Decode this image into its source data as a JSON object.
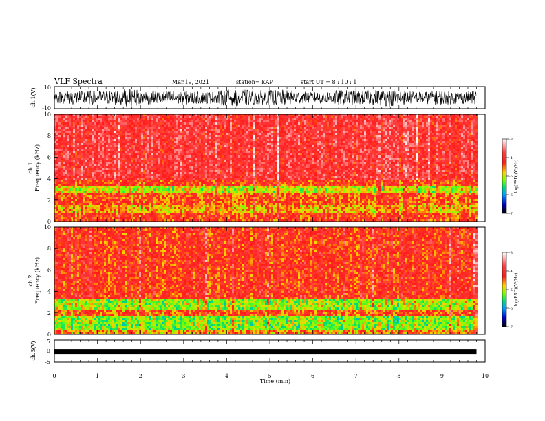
{
  "header": {
    "title": "VLF Spectra",
    "date": "Mar.19, 2021",
    "station": "station= KAP",
    "start": "start  UT =  8 : 10 : 1"
  },
  "chart_data": [
    {
      "type": "line",
      "panel": "waveform-ch1",
      "ylabel": "ch.1(V)",
      "ylim": [
        -10,
        10
      ],
      "yticks": [
        10,
        -10
      ],
      "description_values": {
        "x_range_min": [
          0,
          9.8
        ],
        "typical_amplitude_V": [
          -8,
          8
        ]
      }
    },
    {
      "type": "heatmap",
      "panel": "spectrogram-ch1",
      "ylabel": "ch.1",
      "ylabel2": "Frequency  (kHz)",
      "ylim": [
        0,
        10
      ],
      "yticks": [
        "0",
        "2",
        "4",
        "6",
        "8",
        "10"
      ],
      "xlim": [
        0,
        9.8
      ],
      "bands": [
        {
          "f_low": 3.8,
          "f_high": 10.0,
          "log_psd": -3.9
        },
        {
          "f_low": 3.3,
          "f_high": 3.8,
          "log_psd": -4.3
        },
        {
          "f_low": 2.6,
          "f_high": 3.3,
          "log_psd": -5.0
        },
        {
          "f_low": 1.6,
          "f_high": 2.6,
          "log_psd": -4.4
        },
        {
          "f_low": 0.7,
          "f_high": 1.6,
          "log_psd": -4.7
        },
        {
          "f_low": 0.0,
          "f_high": 0.7,
          "log_psd": -4.3
        }
      ]
    },
    {
      "type": "heatmap",
      "panel": "spectrogram-ch2",
      "ylabel": "ch.2",
      "ylabel2": "Frequency  (kHz)",
      "ylim": [
        0,
        10
      ],
      "yticks": [
        "0",
        "2",
        "4",
        "6",
        "8",
        "10"
      ],
      "xlim": [
        0,
        9.8
      ],
      "bands": [
        {
          "f_low": 3.2,
          "f_high": 10.0,
          "log_psd": -4.2
        },
        {
          "f_low": 2.4,
          "f_high": 3.2,
          "log_psd": -5.1
        },
        {
          "f_low": 1.7,
          "f_high": 2.4,
          "log_psd": -4.4
        },
        {
          "f_low": 0.4,
          "f_high": 1.7,
          "log_psd": -5.2
        },
        {
          "f_low": 0.0,
          "f_high": 0.4,
          "log_psd": -4.6
        }
      ]
    },
    {
      "type": "line",
      "panel": "waveform-ch3",
      "ylabel": "ch.3(V)",
      "ylim": [
        -5,
        5
      ],
      "yticks": [
        "5",
        "0",
        "-5"
      ],
      "xlim": [
        0,
        9.8
      ],
      "level_V": -0.5
    }
  ],
  "x_axis": {
    "label": "Time  (min)",
    "ticks": [
      "0",
      "1",
      "2",
      "3",
      "4",
      "5",
      "6",
      "7",
      "8",
      "9",
      "10"
    ],
    "range": [
      0,
      10
    ]
  },
  "colorbar": {
    "label": "log(PSD)(V²/Hz)",
    "ticks": [
      "-3",
      "-4",
      "-5",
      "-6",
      "-7"
    ],
    "range": [
      -7,
      -3
    ],
    "colors": [
      "#ffffff",
      "#ff1a1a",
      "#ffff00",
      "#00ff33",
      "#00a0ff",
      "#0000cc",
      "#000000"
    ]
  }
}
